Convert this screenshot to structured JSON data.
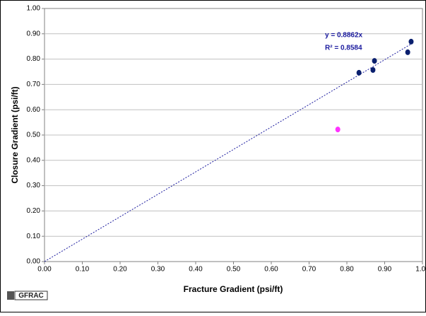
{
  "chart_data": {
    "type": "scatter",
    "x_label": "Fracture Gradient (psi/ft)",
    "y_label": "Closure Gradient (psi/ft)",
    "xlim": [
      0,
      1
    ],
    "ylim": [
      0,
      1
    ],
    "xticks": [
      {
        "value": 0,
        "label": "0.00"
      },
      {
        "value": 0.1,
        "label": "0.10"
      },
      {
        "value": 0.2,
        "label": "0.20"
      },
      {
        "value": 0.3,
        "label": "0.30"
      },
      {
        "value": 0.4,
        "label": "0.40"
      },
      {
        "value": 0.5,
        "label": "0.50"
      },
      {
        "value": 0.6,
        "label": "0.60"
      },
      {
        "value": 0.7,
        "label": "0.70"
      },
      {
        "value": 0.8,
        "label": "0.80"
      },
      {
        "value": 0.9,
        "label": "0.90"
      },
      {
        "value": 1,
        "label": "1.00"
      }
    ],
    "yticks": [
      {
        "value": 0,
        "label": "0.00"
      },
      {
        "value": 0.1,
        "label": "0.10"
      },
      {
        "value": 0.2,
        "label": "0.20"
      },
      {
        "value": 0.3,
        "label": "0.30"
      },
      {
        "value": 0.4,
        "label": "0.40"
      },
      {
        "value": 0.5,
        "label": "0.50"
      },
      {
        "value": 0.6,
        "label": "0.60"
      },
      {
        "value": 0.7,
        "label": "0.70"
      },
      {
        "value": 0.8,
        "label": "0.80"
      },
      {
        "value": 0.9,
        "label": "0.90"
      },
      {
        "value": 1,
        "label": "1.00"
      }
    ],
    "grid": true,
    "series": [
      {
        "color": "#0a1f6e",
        "x": [
          0.832,
          0.869,
          0.873,
          0.961,
          0.97
        ],
        "values": [
          0.746,
          0.757,
          0.793,
          0.827,
          0.869
        ]
      },
      {
        "color": "#ff33ff",
        "x": [
          0.776
        ],
        "values": [
          0.522
        ]
      }
    ],
    "trendline": {
      "slope": 0.8862,
      "equation": "y = 0.8862x",
      "r_squared": "R² = 0.8584",
      "color": "#1a1a9e"
    },
    "logo": "GFRAC"
  }
}
